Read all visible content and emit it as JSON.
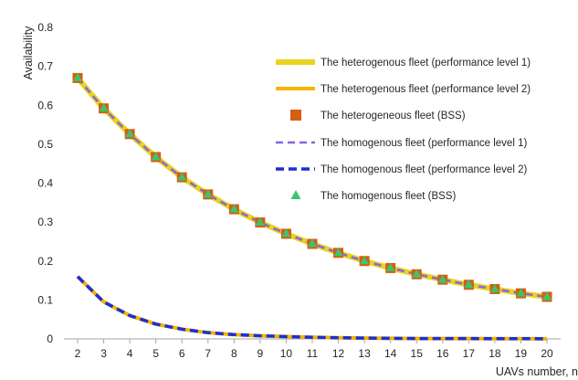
{
  "chart_data": {
    "type": "line",
    "title": "",
    "xlabel": "UAVs number, n",
    "ylabel": "Availability",
    "xlim": [
      2,
      20
    ],
    "ylim": [
      0,
      0.8
    ],
    "yticks": [
      "0",
      "0.1",
      "0.2",
      "0.3",
      "0.4",
      "0.5",
      "0.6",
      "0.7",
      "0.8"
    ],
    "x": [
      2,
      3,
      4,
      5,
      6,
      7,
      8,
      9,
      10,
      11,
      12,
      13,
      14,
      15,
      16,
      17,
      18,
      19,
      20
    ],
    "grid": false,
    "legend_position": "upper-right",
    "series": [
      {
        "name": "The heterogenous fleet (performance level 1)",
        "style": "solid-thick",
        "color": "#e8d421",
        "values": [
          0.67,
          0.592,
          0.526,
          0.467,
          0.415,
          0.371,
          0.333,
          0.299,
          0.27,
          0.244,
          0.221,
          0.2,
          0.182,
          0.166,
          0.152,
          0.139,
          0.128,
          0.117,
          0.108
        ]
      },
      {
        "name": "The heterogenous fleet (performance level 2)",
        "style": "solid",
        "color": "#f5b400",
        "values": [
          0.16,
          0.095,
          0.06,
          0.038,
          0.025,
          0.016,
          0.011,
          0.008,
          0.006,
          0.004,
          0.003,
          0.002,
          0.0015,
          0.001,
          0.001,
          0.0008,
          0.0006,
          0.0005,
          0.0004
        ]
      },
      {
        "name": "The heterogeneous fleet (BSS)",
        "style": "marker-square",
        "color": "#d35f12",
        "values": [
          0.67,
          0.592,
          0.526,
          0.467,
          0.415,
          0.371,
          0.333,
          0.299,
          0.27,
          0.244,
          0.221,
          0.2,
          0.182,
          0.166,
          0.152,
          0.139,
          0.128,
          0.117,
          0.108
        ]
      },
      {
        "name": "The homogenous fleet (performance level 1)",
        "style": "dashed",
        "color": "#8a64e0",
        "values": [
          0.67,
          0.592,
          0.526,
          0.467,
          0.415,
          0.371,
          0.333,
          0.299,
          0.27,
          0.244,
          0.221,
          0.2,
          0.182,
          0.166,
          0.152,
          0.139,
          0.128,
          0.117,
          0.108
        ]
      },
      {
        "name": "The homogenous fleet (performance level 2)",
        "style": "dashed-thick",
        "color": "#1c2fd6",
        "values": [
          0.16,
          0.095,
          0.06,
          0.038,
          0.025,
          0.016,
          0.011,
          0.008,
          0.006,
          0.004,
          0.003,
          0.002,
          0.0015,
          0.001,
          0.001,
          0.0008,
          0.0006,
          0.0005,
          0.0004
        ]
      },
      {
        "name": "The homogenous fleet (BSS)",
        "style": "marker-triangle",
        "color": "#3cc46e",
        "values": [
          0.67,
          0.592,
          0.526,
          0.467,
          0.415,
          0.371,
          0.333,
          0.299,
          0.27,
          0.244,
          0.221,
          0.2,
          0.182,
          0.166,
          0.152,
          0.139,
          0.128,
          0.117,
          0.108
        ]
      }
    ]
  }
}
